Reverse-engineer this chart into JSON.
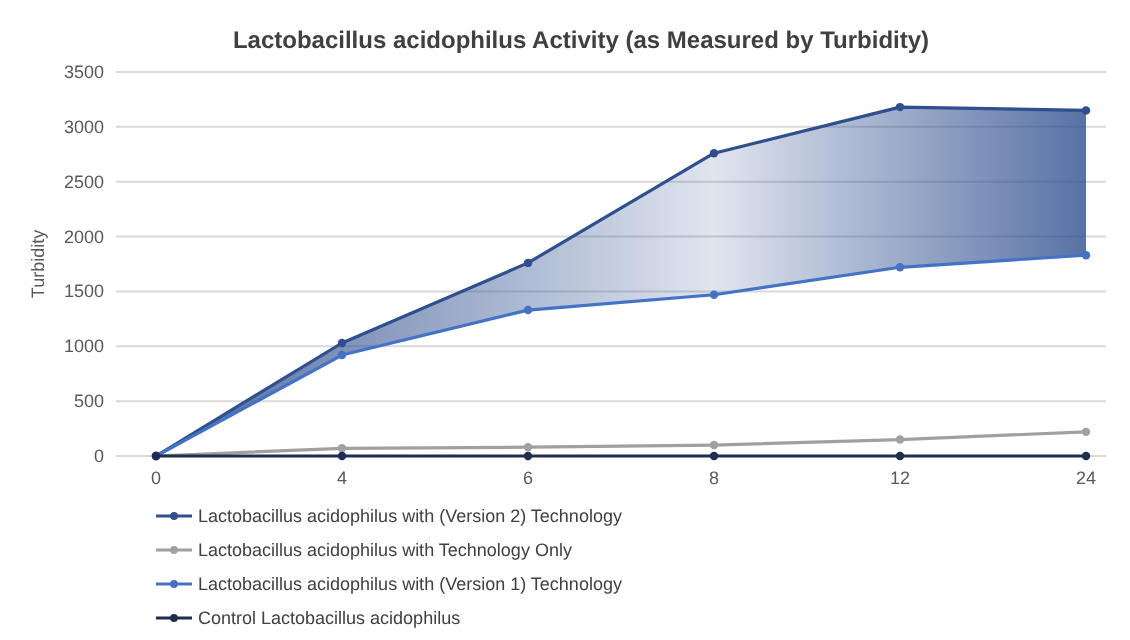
{
  "chart_data": {
    "type": "line",
    "title": "Lactobacillus acidophilus Activity (as Measured by Turbidity)",
    "ylabel": "Turbidity",
    "categories": [
      "0",
      "4",
      "6",
      "8",
      "12",
      "24"
    ],
    "ylim": [
      0,
      3500
    ],
    "yticks": [
      0,
      500,
      1000,
      1500,
      2000,
      2500,
      3000,
      3500
    ],
    "grid": "y",
    "legend": "bottom",
    "marker": "circle",
    "line_style": "solid",
    "series": [
      {
        "name": "Lactobacillus acidophilus with (Version 2) Technology",
        "color": "#2f4f8f",
        "values": [
          0,
          1030,
          1760,
          2760,
          3180,
          3150
        ],
        "lower": [
          0,
          920,
          1330,
          1470,
          1720,
          1830
        ],
        "upper": [
          0,
          1030,
          1760,
          2760,
          3180,
          3150
        ]
      },
      {
        "name": "Lactobacillus acidophilus with Technology Only",
        "color": "#a0a0a0",
        "values": [
          0,
          70,
          80,
          100,
          150,
          220
        ]
      },
      {
        "name": "Lactobacillus acidophilus with (Version 1) Technology",
        "color": "#4472c4",
        "values": [
          0,
          920,
          1330,
          1470,
          1720,
          1830
        ]
      },
      {
        "name": "Control Lactobacillus acidophilus",
        "color": "#1f2d4f",
        "values": [
          0,
          0,
          0,
          0,
          0,
          0
        ]
      }
    ]
  }
}
